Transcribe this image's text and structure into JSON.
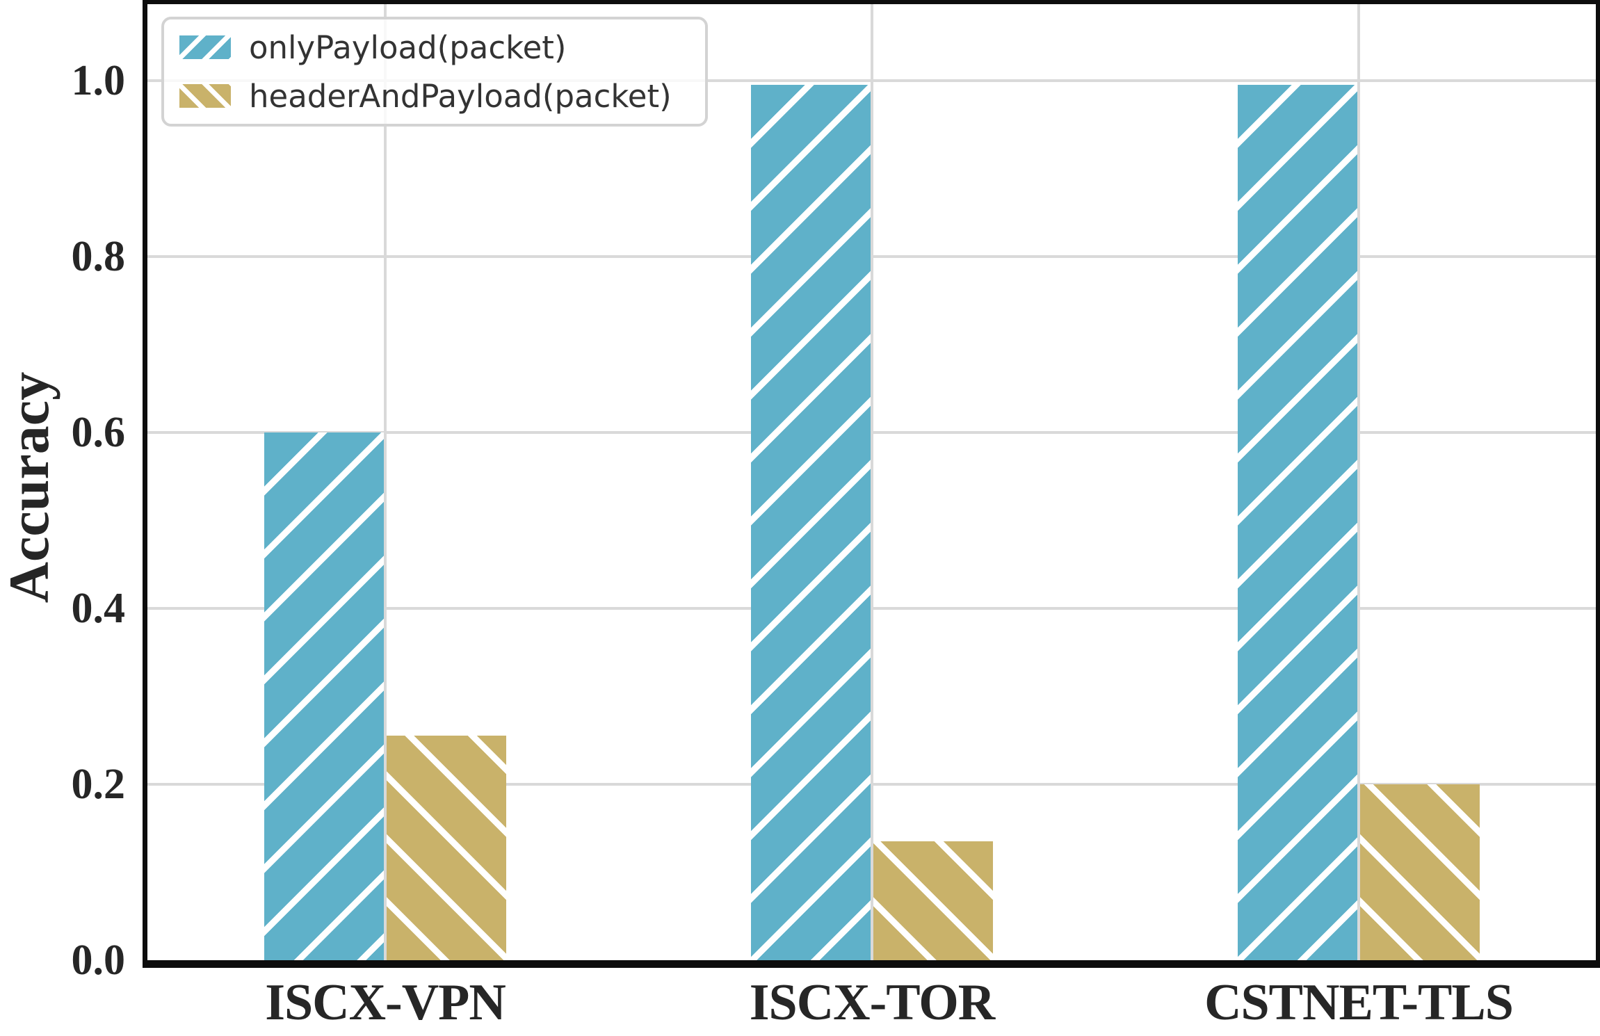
{
  "figure": {
    "ylabel": "Accuracy",
    "background_color": "#ffffff",
    "spine_color": "#0d0d0d",
    "grid_color": "#d9d9d9",
    "tick_label_color": "#262626"
  },
  "legend": {
    "border_color": "#d3d3d3",
    "items": [
      {
        "label": "onlyPayload(packet)",
        "color": "#5FB1C9",
        "hatch": "/"
      },
      {
        "label": "headerAndPayload(packet)",
        "color": "#C9B26A",
        "hatch": "\\"
      }
    ]
  },
  "axes": {
    "y_tick_labels": [
      "1.0",
      "0.8",
      "0.6",
      "0.4",
      "0.2",
      "0.0"
    ],
    "y_tick_values": [
      1.0,
      0.8,
      0.6,
      0.4,
      0.2,
      0.0
    ],
    "x_tick_labels": [
      "ISCX-VPN",
      "ISCX-TOR",
      "CSTNET-TLS"
    ]
  },
  "chart_data": {
    "type": "bar",
    "title": "",
    "xlabel": "",
    "ylabel": "Accuracy",
    "categories": [
      "ISCX-VPN",
      "ISCX-TOR",
      "CSTNET-TLS"
    ],
    "series": [
      {
        "name": "onlyPayload(packet)",
        "color": "#5FB1C9",
        "hatch": "/",
        "values": [
          0.6,
          0.995,
          0.995
        ]
      },
      {
        "name": "headerAndPayload(packet)",
        "color": "#C9B26A",
        "hatch": "\\",
        "values": [
          0.255,
          0.135,
          0.2
        ]
      }
    ],
    "ylim": [
      0,
      1.09
    ],
    "yticks": [
      0.0,
      0.2,
      0.4,
      0.6,
      0.8,
      1.0
    ],
    "grid": true,
    "grid_axes": "both",
    "legend_position": "upper left",
    "bar_hatch_foreground": "#ffffff"
  }
}
